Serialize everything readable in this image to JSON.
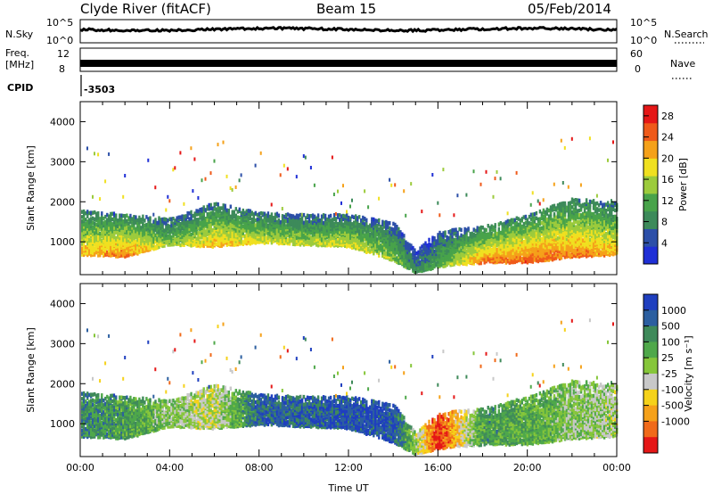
{
  "header": {
    "station": "Clyde River (fitACF)",
    "beam": "Beam 15",
    "date": "05/Feb/2014"
  },
  "strips": {
    "nsky_label": "N.Sky",
    "nsky_ticks": [
      "10^5",
      "10^0"
    ],
    "nsearch_label": "N.Search",
    "nsearch_ticks": [
      "10^5",
      "10^0"
    ],
    "freq_label_1": "Freq.",
    "freq_label_2": "[MHz]",
    "freq_ticks": [
      "12",
      "8"
    ],
    "nave_label": "Nave",
    "nave_ticks": [
      "60",
      "0"
    ],
    "cpid_label": "CPID",
    "cpid_value": "-3503"
  },
  "chart_data": [
    {
      "type": "heatmap",
      "title": "",
      "xlabel": "",
      "ylabel": "Slant Range [km]",
      "xlim": [
        0,
        24
      ],
      "ylim": [
        180,
        4500
      ],
      "x_ticks": [],
      "y_ticks": [
        "1000",
        "2000",
        "3000",
        "4000"
      ],
      "colorbar": {
        "label": "Power [dB]",
        "ticks": [
          "4",
          "8",
          "12",
          "16",
          "20",
          "24",
          "28"
        ],
        "range": [
          0,
          30
        ],
        "colors": [
          "#1f2fd6",
          "#2c4fa8",
          "#3d8a5a",
          "#48a34a",
          "#9ccb3c",
          "#f0e020",
          "#f5a11a",
          "#ef5a1a",
          "#e51717"
        ]
      },
      "scatter_band": [
        {
          "hour": 0,
          "low_km": 700,
          "high_km": 1800,
          "level": 0.7
        },
        {
          "hour": 2,
          "low_km": 650,
          "high_km": 1700,
          "level": 0.8
        },
        {
          "hour": 4,
          "low_km": 950,
          "high_km": 1600,
          "level": 0.5
        },
        {
          "hour": 6,
          "low_km": 900,
          "high_km": 2000,
          "level": 0.7
        },
        {
          "hour": 8,
          "low_km": 1000,
          "high_km": 1750,
          "level": 0.6
        },
        {
          "hour": 10,
          "low_km": 950,
          "high_km": 1700,
          "level": 0.55
        },
        {
          "hour": 12,
          "low_km": 900,
          "high_km": 1700,
          "level": 0.6
        },
        {
          "hour": 14,
          "low_km": 550,
          "high_km": 1500,
          "level": 0.5
        },
        {
          "hour": 15,
          "low_km": 250,
          "high_km": 800,
          "level": 0.3
        },
        {
          "hour": 16,
          "low_km": 400,
          "high_km": 1300,
          "level": 0.4
        },
        {
          "hour": 18,
          "low_km": 500,
          "high_km": 1400,
          "level": 0.8
        },
        {
          "hour": 20,
          "low_km": 500,
          "high_km": 1700,
          "level": 0.85
        },
        {
          "hour": 22,
          "low_km": 650,
          "high_km": 2100,
          "level": 0.8
        },
        {
          "hour": 24,
          "low_km": 700,
          "high_km": 2000,
          "level": 0.7
        }
      ]
    },
    {
      "type": "heatmap",
      "title": "",
      "xlabel": "Time UT",
      "ylabel": "Slant Range [km]",
      "xlim": [
        0,
        24
      ],
      "ylim": [
        180,
        4500
      ],
      "x_ticks": [
        "00:00",
        "04:00",
        "08:00",
        "12:00",
        "16:00",
        "20:00",
        "00:00"
      ],
      "y_ticks": [
        "1000",
        "2000",
        "3000",
        "4000"
      ],
      "colorbar": {
        "label": "Velocity [m s⁻¹]",
        "ticks": [
          "1000",
          "500",
          "100",
          "25",
          "-25",
          "-100",
          "-500",
          "-1000"
        ],
        "range": [
          -1000,
          1000
        ],
        "colors": [
          "#1f3fbf",
          "#2c5fa0",
          "#3f8a5a",
          "#4fa84a",
          "#86c63a",
          "#c8c8c8",
          "#f5d21a",
          "#f5a11a",
          "#f06a1a",
          "#e51717"
        ]
      },
      "scatter_band": [
        {
          "hour": 0,
          "low_km": 700,
          "high_km": 1800,
          "level": 0.75
        },
        {
          "hour": 2,
          "low_km": 650,
          "high_km": 1700,
          "level": 0.7
        },
        {
          "hour": 4,
          "low_km": 950,
          "high_km": 1600,
          "level": 0.55
        },
        {
          "hour": 6,
          "low_km": 900,
          "high_km": 2000,
          "level": 0.45
        },
        {
          "hour": 8,
          "low_km": 1000,
          "high_km": 1750,
          "level": 0.85
        },
        {
          "hour": 10,
          "low_km": 950,
          "high_km": 1700,
          "level": 0.85
        },
        {
          "hour": 12,
          "low_km": 900,
          "high_km": 1700,
          "level": 0.9
        },
        {
          "hour": 14,
          "low_km": 550,
          "high_km": 1500,
          "level": 0.9
        },
        {
          "hour": 15,
          "low_km": 250,
          "high_km": 800,
          "level": 0.5
        },
        {
          "hour": 16,
          "low_km": 400,
          "high_km": 1300,
          "level": 0.05
        },
        {
          "hour": 18,
          "low_km": 500,
          "high_km": 1400,
          "level": 0.7
        },
        {
          "hour": 20,
          "low_km": 500,
          "high_km": 1700,
          "level": 0.65
        },
        {
          "hour": 22,
          "low_km": 650,
          "high_km": 2100,
          "level": 0.55
        },
        {
          "hour": 24,
          "low_km": 700,
          "high_km": 2000,
          "level": 0.5
        }
      ]
    }
  ]
}
